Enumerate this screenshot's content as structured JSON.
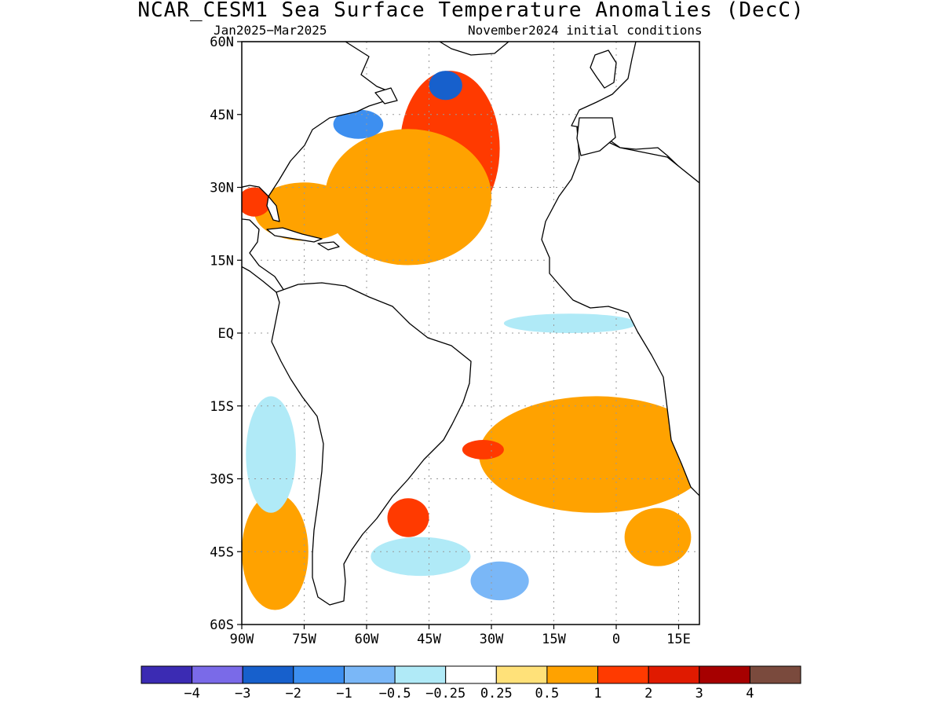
{
  "title": "NCAR_CESM1 Sea Surface Temperature Anomalies (DecC)",
  "subtitle_left": "Jan2025−Mar2025",
  "subtitle_right": "November2024 initial conditions",
  "colors": {
    "land_outline": "#000000",
    "ocean_neutral": "#ffffff",
    "grid": "#999999"
  },
  "chart_data": {
    "type": "heatmap",
    "title": "NCAR_CESM1 Sea Surface Temperature Anomalies (DecC)",
    "units": "DecC",
    "valid_period": "Jan2025−Mar2025",
    "initial_conditions": "November2024 initial conditions",
    "lon_range": [
      -90,
      20
    ],
    "lat_range": [
      -60,
      60
    ],
    "lon_ticks": [
      {
        "value": -90,
        "label": "90W"
      },
      {
        "value": -75,
        "label": "75W"
      },
      {
        "value": -60,
        "label": "60W"
      },
      {
        "value": -45,
        "label": "45W"
      },
      {
        "value": -30,
        "label": "30W"
      },
      {
        "value": -15,
        "label": "15W"
      },
      {
        "value": 0,
        "label": "0"
      },
      {
        "value": 15,
        "label": "15E"
      }
    ],
    "lat_ticks": [
      {
        "value": 60,
        "label": "60N"
      },
      {
        "value": 45,
        "label": "45N"
      },
      {
        "value": 30,
        "label": "30N"
      },
      {
        "value": 15,
        "label": "15N"
      },
      {
        "value": 0,
        "label": "EQ"
      },
      {
        "value": -15,
        "label": "15S"
      },
      {
        "value": -30,
        "label": "30S"
      },
      {
        "value": -45,
        "label": "45S"
      },
      {
        "value": -60,
        "label": "60S"
      }
    ],
    "grid": true,
    "colorbar": {
      "colors": [
        "#3b2bb3",
        "#7a6ae8",
        "#1760cc",
        "#3d8ff0",
        "#7ab7f7",
        "#b0eaf7",
        "#ffffff",
        "#ffe179",
        "#ffa200",
        "#ff3a00",
        "#e01a00",
        "#a60000",
        "#7a4a3d"
      ],
      "labels": [
        "−4",
        "−3",
        "−2",
        "−1",
        "−0.5",
        "−0.25",
        "0.25",
        "0.5",
        "1",
        "2",
        "3",
        "4"
      ]
    },
    "anomaly_regions": [
      {
        "lon": -40,
        "lat": 38,
        "rx": 12,
        "ry": 16,
        "value": 1.5
      },
      {
        "lon": -50,
        "lat": 28,
        "rx": 20,
        "ry": 14,
        "value": 0.8
      },
      {
        "lon": -75,
        "lat": 25,
        "rx": 12,
        "ry": 6,
        "value": 0.8
      },
      {
        "lon": -87,
        "lat": 27,
        "rx": 4,
        "ry": 3,
        "value": 1.5
      },
      {
        "lon": -62,
        "lat": 43,
        "rx": 6,
        "ry": 3,
        "value": -1.5
      },
      {
        "lon": -41,
        "lat": 51,
        "rx": 4,
        "ry": 3,
        "value": -2.5
      },
      {
        "lon": -11,
        "lat": 2,
        "rx": 16,
        "ry": 2,
        "value": -0.4
      },
      {
        "lon": -5,
        "lat": -25,
        "rx": 28,
        "ry": 12,
        "value": 0.8
      },
      {
        "lon": -32,
        "lat": -24,
        "rx": 5,
        "ry": 2,
        "value": 1.5
      },
      {
        "lon": -50,
        "lat": -38,
        "rx": 5,
        "ry": 4,
        "value": 1.5
      },
      {
        "lon": -47,
        "lat": -46,
        "rx": 12,
        "ry": 4,
        "value": -0.5
      },
      {
        "lon": -28,
        "lat": -51,
        "rx": 7,
        "ry": 4,
        "value": -1.0
      },
      {
        "lon": 10,
        "lat": -42,
        "rx": 8,
        "ry": 6,
        "value": 0.8
      },
      {
        "lon": -82,
        "lat": -45,
        "rx": 8,
        "ry": 12,
        "value": 0.8
      },
      {
        "lon": -83,
        "lat": -25,
        "rx": 6,
        "ry": 12,
        "value": -0.3
      }
    ]
  }
}
